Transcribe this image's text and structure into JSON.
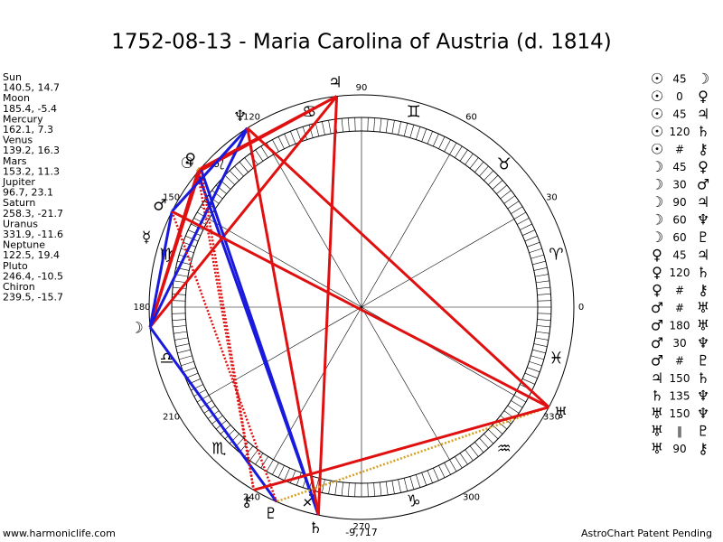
{
  "title": "1752-08-13 - Maria Carolina of Austria (d. 1814)",
  "planets": [
    {
      "name": "Sun",
      "glyph": "☉",
      "label": "140.5, 14.7",
      "lon": 140.5,
      "lat": 14.7
    },
    {
      "name": "Moon",
      "glyph": "☽",
      "label": "185.4, -5.4",
      "lon": 185.4,
      "lat": -5.4
    },
    {
      "name": "Mercury",
      "glyph": "☿",
      "label": "162.1, 7.3",
      "lon": 162.1,
      "lat": 7.3
    },
    {
      "name": "Venus",
      "glyph": "♀",
      "label": "139.2, 16.3",
      "lon": 139.2,
      "lat": 16.3
    },
    {
      "name": "Mars",
      "glyph": "♂",
      "label": "153.2, 11.3",
      "lon": 153.2,
      "lat": 11.3
    },
    {
      "name": "Jupiter",
      "glyph": "♃",
      "label": "96.7, 23.1",
      "lon": 96.7,
      "lat": 23.1
    },
    {
      "name": "Saturn",
      "glyph": "♄",
      "label": "258.3, -21.7",
      "lon": 258.3,
      "lat": -21.7
    },
    {
      "name": "Uranus",
      "glyph": "♅",
      "label": "331.9, -11.6",
      "lon": 331.9,
      "lat": -11.6
    },
    {
      "name": "Neptune",
      "glyph": "♆",
      "label": "122.5, 19.4",
      "lon": 122.5,
      "lat": 19.4
    },
    {
      "name": "Pluto",
      "glyph": "♇",
      "label": "246.4, -10.5",
      "lon": 246.4,
      "lat": -10.5
    },
    {
      "name": "Chiron",
      "glyph": "⚷",
      "label": "239.5, -15.7",
      "lon": 239.5,
      "lat": -15.7
    }
  ],
  "signs": [
    "♈",
    "♉",
    "♊",
    "♋",
    "♌",
    "♍",
    "♎",
    "♏",
    "♐",
    "♑",
    "♒",
    "♓"
  ],
  "wheel_ticks": [
    0,
    30,
    60,
    90,
    120,
    150,
    180,
    210,
    240,
    270,
    300,
    330
  ],
  "aspects": [
    {
      "p1": "☉",
      "aspect": "45",
      "p2": "☽"
    },
    {
      "p1": "☉",
      "aspect": "0",
      "p2": "♀"
    },
    {
      "p1": "☉",
      "aspect": "45",
      "p2": "♃"
    },
    {
      "p1": "☉",
      "aspect": "120",
      "p2": "♄"
    },
    {
      "p1": "☉",
      "aspect": "#",
      "p2": "⚷"
    },
    {
      "p1": "☽",
      "aspect": "45",
      "p2": "♀"
    },
    {
      "p1": "☽",
      "aspect": "30",
      "p2": "♂"
    },
    {
      "p1": "☽",
      "aspect": "90",
      "p2": "♃"
    },
    {
      "p1": "☽",
      "aspect": "60",
      "p2": "♆"
    },
    {
      "p1": "☽",
      "aspect": "60",
      "p2": "♇"
    },
    {
      "p1": "♀",
      "aspect": "45",
      "p2": "♃"
    },
    {
      "p1": "♀",
      "aspect": "120",
      "p2": "♄"
    },
    {
      "p1": "♀",
      "aspect": "#",
      "p2": "⚷"
    },
    {
      "p1": "♂",
      "aspect": "#",
      "p2": "♅"
    },
    {
      "p1": "♂",
      "aspect": "180",
      "p2": "♅"
    },
    {
      "p1": "♂",
      "aspect": "30",
      "p2": "♆"
    },
    {
      "p1": "♂",
      "aspect": "#",
      "p2": "♇"
    },
    {
      "p1": "♃",
      "aspect": "150",
      "p2": "♄"
    },
    {
      "p1": "♄",
      "aspect": "135",
      "p2": "♆"
    },
    {
      "p1": "♅",
      "aspect": "150",
      "p2": "♆"
    },
    {
      "p1": "♅",
      "aspect": "‖",
      "p2": "♇"
    },
    {
      "p1": "♅",
      "aspect": "90",
      "p2": "⚷"
    }
  ],
  "aspect_colors": {
    "0": "#d4a020",
    "30": "#1a1adc",
    "45": "#e01010",
    "60": "#1a1adc",
    "90": "#e01010",
    "120": "#1a1adc",
    "135": "#e01010",
    "150": "#e01010",
    "180": "#e01010",
    "#": "#e01010",
    "‖": "#d4a020"
  },
  "bottom_value": "-9,717",
  "footer_left": "www.harmoniclife.com",
  "footer_right": "AstroChart Patent Pending"
}
